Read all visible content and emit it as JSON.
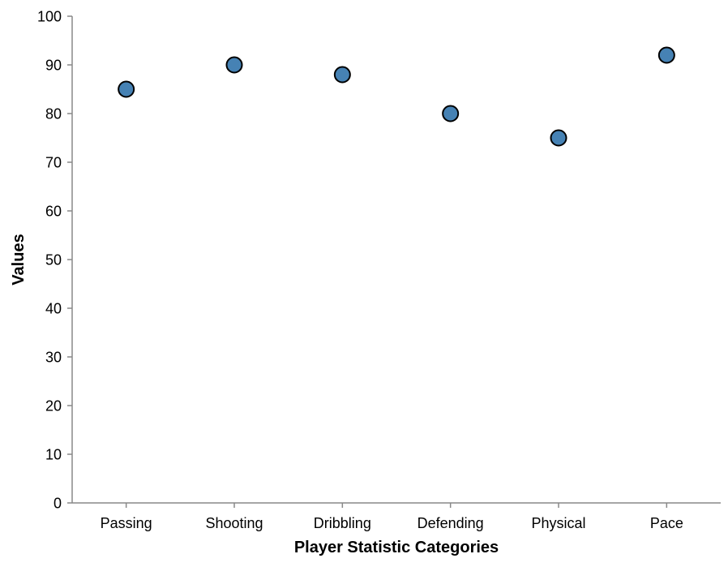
{
  "chart_data": {
    "type": "scatter",
    "title": "",
    "xlabel": "Player Statistic Categories",
    "ylabel": "Values",
    "categories": [
      "Passing",
      "Shooting",
      "Dribbling",
      "Defending",
      "Physical",
      "Pace"
    ],
    "values": [
      85,
      90,
      88,
      80,
      75,
      92
    ],
    "ylim": [
      0,
      100
    ],
    "yticks": [
      0,
      10,
      20,
      30,
      40,
      50,
      60,
      70,
      80,
      90,
      100
    ],
    "grid": false,
    "legend": "none",
    "point_color": "#4682b4",
    "point_stroke": "#000000"
  }
}
